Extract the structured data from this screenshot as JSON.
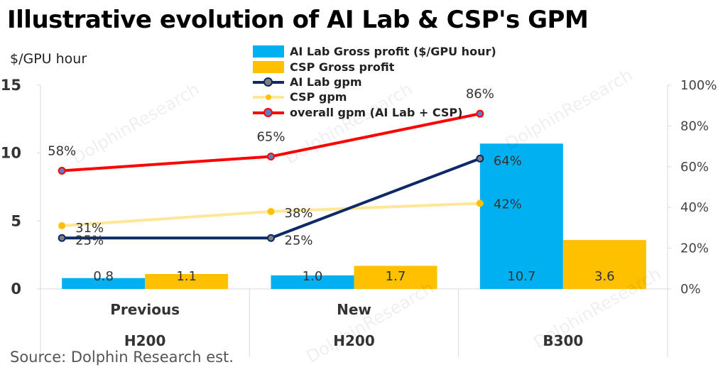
{
  "title": "Illustrative evolution of AI Lab & CSP's GPM",
  "source": "Source: Dolphin Research est.",
  "watermark": "DolphinResearch",
  "chart_data": {
    "type": "bar",
    "ylabel": "$/GPU hour",
    "ylim": [
      0,
      15
    ],
    "y_ticks": [
      "0",
      "5",
      "10",
      "15"
    ],
    "y2lim": [
      0,
      1
    ],
    "y2_ticks": [
      "0%",
      "20%",
      "40%",
      "60%",
      "80%",
      "100%"
    ],
    "categories": [
      {
        "top": "Previous",
        "bottom": "H200"
      },
      {
        "top": "New",
        "bottom": "H200"
      },
      {
        "top": "",
        "bottom": "B300"
      }
    ],
    "bar_series": [
      {
        "name": "AI Lab Gross profit  ($/GPU hour)",
        "color": "#00b0f0",
        "values": [
          0.8,
          1.0,
          10.7
        ],
        "labels": [
          "0.8",
          "1.0",
          "10.7"
        ]
      },
      {
        "name": "CSP Gross profit",
        "color": "#ffc000",
        "values": [
          1.1,
          1.7,
          3.6
        ],
        "labels": [
          "1.1",
          "1.7",
          "3.6"
        ]
      }
    ],
    "line_series": [
      {
        "name": "AI Lab gpm",
        "color": "#0d2a66",
        "marker": "#7f7f7f",
        "values": [
          0.25,
          0.25,
          0.64
        ],
        "labels": [
          "25%",
          "25%",
          "64%"
        ]
      },
      {
        "name": "CSP gpm",
        "color": "#ffe699",
        "marker": "#ffc000",
        "values": [
          0.31,
          0.38,
          0.42
        ],
        "labels": [
          "31%",
          "38%",
          "42%"
        ]
      },
      {
        "name": "overall gpm (AI Lab + CSP)",
        "color": "#ff0000",
        "marker": "#5b7fc4",
        "values": [
          0.58,
          0.65,
          0.86
        ],
        "labels": [
          "58%",
          "65%",
          "86%"
        ]
      }
    ],
    "legend_position": "top-center",
    "grid": false
  }
}
